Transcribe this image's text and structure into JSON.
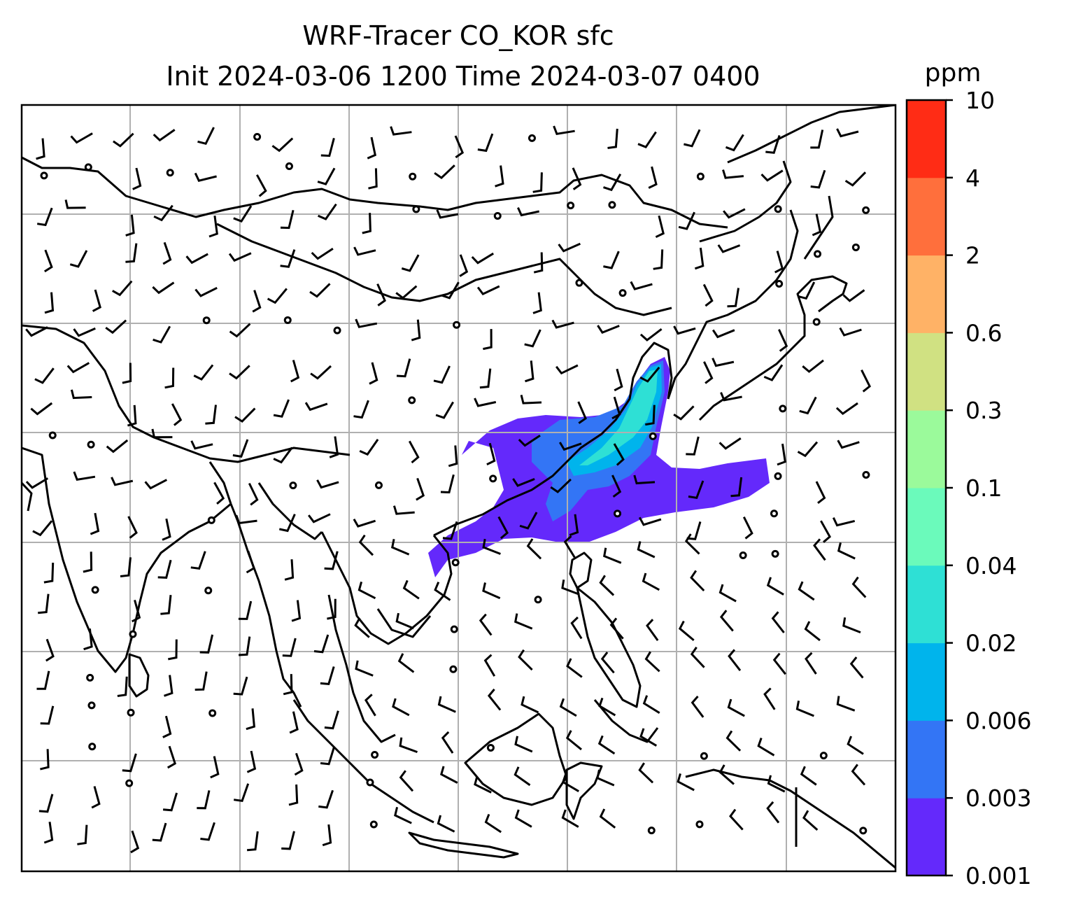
{
  "title": {
    "line1": "WRF-Tracer CO_KOR sfc",
    "line2": "Init 2024-03-06 1200 Time 2024-03-07 0400"
  },
  "colorbar": {
    "unit": "ppm",
    "levels": [
      "0.001",
      "0.003",
      "0.006",
      "0.02",
      "0.04",
      "0.1",
      "0.3",
      "0.6",
      "2",
      "4",
      "10"
    ],
    "colors": [
      "#6429fb",
      "#3375f5",
      "#00b4ec",
      "#2ee0d5",
      "#6bfabb",
      "#9bfa9b",
      "#d0e182",
      "#ffb266",
      "#ff6f3c",
      "#ff2c15"
    ]
  },
  "map": {
    "gridlines": true,
    "grid_color": "#b0b0b0",
    "coastline_color": "#000000",
    "features": [
      "coastlines",
      "country-borders",
      "wind-barbs",
      "tracer-plume"
    ]
  }
}
